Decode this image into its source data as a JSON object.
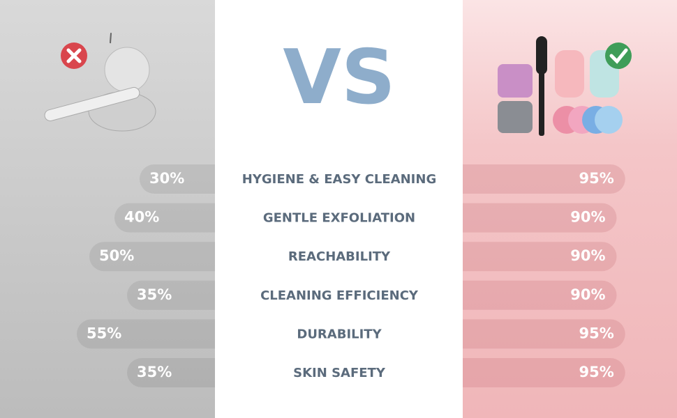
{
  "vs": "VS",
  "rows": [
    {
      "label": "HYGIENE & EASY CLEANING",
      "left": 30,
      "left_label": "30%",
      "right": 95,
      "right_label": "95%"
    },
    {
      "label": "GENTLE EXFOLIATION",
      "left": 40,
      "left_label": "40%",
      "right": 90,
      "right_label": "90%"
    },
    {
      "label": "REACHABILITY",
      "left": 50,
      "left_label": "50%",
      "right": 90,
      "right_label": "90%"
    },
    {
      "label": "CLEANING EFFICIENCY",
      "left": 35,
      "left_label": "35%",
      "right": 90,
      "right_label": "90%"
    },
    {
      "label": "DURABILITY",
      "left": 55,
      "left_label": "55%",
      "right": 95,
      "right_label": "95%"
    },
    {
      "label": "SKIN SAFETY",
      "left": 35,
      "left_label": "35%",
      "right": 95,
      "right_label": "95%"
    }
  ]
}
